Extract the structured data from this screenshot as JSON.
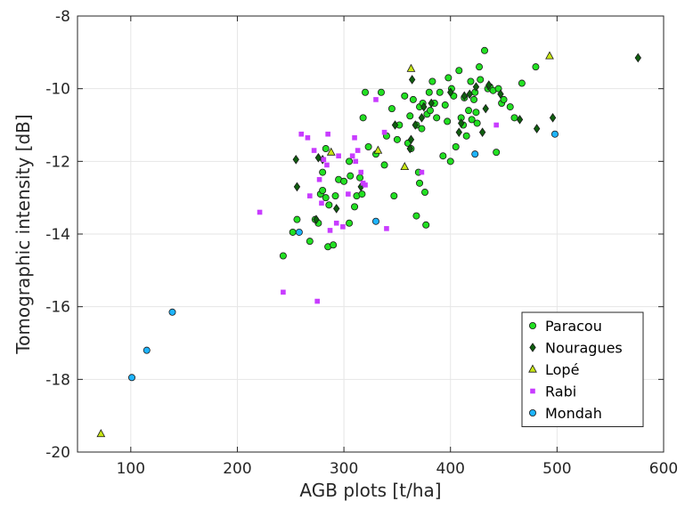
{
  "chart_data": {
    "type": "scatter",
    "title": "",
    "xlabel": "AGB plots [t/ha]",
    "ylabel": "Tomographic intensity [dB]",
    "xlim": [
      50,
      600
    ],
    "ylim": [
      -20,
      -8
    ],
    "xticks": [
      "100",
      "200",
      "300",
      "400",
      "500",
      "600"
    ],
    "yticks": [
      "-20",
      "-18",
      "-16",
      "-14",
      "-12",
      "-10",
      "-8"
    ],
    "grid": true,
    "legend_position": "bottom-right",
    "series": [
      {
        "name": "Paracou",
        "marker": "circle",
        "color": "#22e022",
        "points": [
          [
            243,
            -14.6
          ],
          [
            252,
            -13.95
          ],
          [
            256,
            -13.6
          ],
          [
            268,
            -14.2
          ],
          [
            273,
            -13.6
          ],
          [
            276,
            -13.7
          ],
          [
            278,
            -12.9
          ],
          [
            280,
            -12.8
          ],
          [
            280,
            -12.3
          ],
          [
            283,
            -11.65
          ],
          [
            285,
            -14.35
          ],
          [
            290,
            -14.3
          ],
          [
            283,
            -13.0
          ],
          [
            286,
            -13.2
          ],
          [
            292,
            -12.95
          ],
          [
            295,
            -12.5
          ],
          [
            300,
            -12.55
          ],
          [
            305,
            -13.7
          ],
          [
            305,
            -12.0
          ],
          [
            306,
            -12.4
          ],
          [
            310,
            -13.25
          ],
          [
            312,
            -12.95
          ],
          [
            315,
            -12.45
          ],
          [
            317,
            -12.9
          ],
          [
            318,
            -10.8
          ],
          [
            320,
            -10.1
          ],
          [
            323,
            -11.6
          ],
          [
            330,
            -11.8
          ],
          [
            335,
            -10.1
          ],
          [
            338,
            -12.1
          ],
          [
            340,
            -11.3
          ],
          [
            345,
            -10.55
          ],
          [
            347,
            -12.95
          ],
          [
            350,
            -11.4
          ],
          [
            352,
            -11.0
          ],
          [
            357,
            -10.2
          ],
          [
            360,
            -11.5
          ],
          [
            362,
            -10.75
          ],
          [
            363,
            -11.65
          ],
          [
            365,
            -10.3
          ],
          [
            368,
            -11.0
          ],
          [
            368,
            -13.5
          ],
          [
            370,
            -12.3
          ],
          [
            371,
            -12.6
          ],
          [
            371,
            -10.5
          ],
          [
            373,
            -11.1
          ],
          [
            374,
            -10.4
          ],
          [
            376,
            -12.85
          ],
          [
            377,
            -13.75
          ],
          [
            378,
            -10.7
          ],
          [
            380,
            -10.1
          ],
          [
            381,
            -10.6
          ],
          [
            383,
            -9.8
          ],
          [
            385,
            -10.4
          ],
          [
            387,
            -10.8
          ],
          [
            390,
            -10.1
          ],
          [
            393,
            -11.85
          ],
          [
            395,
            -10.45
          ],
          [
            397,
            -10.9
          ],
          [
            398,
            -9.7
          ],
          [
            400,
            -12.0
          ],
          [
            401,
            -10.0
          ],
          [
            403,
            -10.2
          ],
          [
            405,
            -11.6
          ],
          [
            408,
            -9.5
          ],
          [
            410,
            -10.8
          ],
          [
            412,
            -11.0
          ],
          [
            413,
            -10.25
          ],
          [
            415,
            -11.3
          ],
          [
            417,
            -10.6
          ],
          [
            419,
            -9.8
          ],
          [
            420,
            -10.85
          ],
          [
            422,
            -10.3
          ],
          [
            423,
            -10.1
          ],
          [
            424,
            -10.65
          ],
          [
            425,
            -10.95
          ],
          [
            427,
            -9.4
          ],
          [
            428,
            -9.75
          ],
          [
            432,
            -8.95
          ],
          [
            435,
            -10.0
          ],
          [
            437,
            -9.95
          ],
          [
            440,
            -10.05
          ],
          [
            443,
            -11.75
          ],
          [
            445,
            -10.0
          ],
          [
            448,
            -10.4
          ],
          [
            450,
            -10.3
          ],
          [
            456,
            -10.5
          ],
          [
            460,
            -10.8
          ],
          [
            467,
            -9.85
          ],
          [
            480,
            -9.4
          ]
        ]
      },
      {
        "name": "Nouragues",
        "marker": "diamond",
        "color": "#0f5f0f",
        "points": [
          [
            255,
            -11.95
          ],
          [
            256,
            -12.7
          ],
          [
            274,
            -13.6
          ],
          [
            276,
            -11.9
          ],
          [
            280,
            -11.95
          ],
          [
            293,
            -13.3
          ],
          [
            316,
            -12.7
          ],
          [
            348,
            -11.0
          ],
          [
            362,
            -11.65
          ],
          [
            363,
            -11.4
          ],
          [
            364,
            -9.75
          ],
          [
            367,
            -11.0
          ],
          [
            373,
            -10.8
          ],
          [
            375,
            -10.5
          ],
          [
            382,
            -10.4
          ],
          [
            400,
            -10.1
          ],
          [
            408,
            -11.2
          ],
          [
            410,
            -10.95
          ],
          [
            413,
            -10.2
          ],
          [
            418,
            -10.15
          ],
          [
            424,
            -9.95
          ],
          [
            430,
            -11.2
          ],
          [
            433,
            -10.55
          ],
          [
            436,
            -9.9
          ],
          [
            447,
            -10.15
          ],
          [
            465,
            -10.85
          ],
          [
            481,
            -11.1
          ],
          [
            496,
            -10.8
          ],
          [
            576,
            -9.15
          ]
        ]
      },
      {
        "name": "Lopé",
        "marker": "triangle",
        "color": "#c8e614",
        "points": [
          [
            72,
            -19.5
          ],
          [
            288,
            -11.75
          ],
          [
            332,
            -11.7
          ],
          [
            357,
            -12.15
          ],
          [
            363,
            -9.45
          ],
          [
            493,
            -9.1
          ]
        ]
      },
      {
        "name": "Rabi",
        "marker": "square",
        "color": "#c83cff",
        "points": [
          [
            221,
            -13.4
          ],
          [
            243,
            -15.6
          ],
          [
            260,
            -11.25
          ],
          [
            266,
            -11.35
          ],
          [
            268,
            -12.95
          ],
          [
            272,
            -11.7
          ],
          [
            275,
            -15.85
          ],
          [
            277,
            -12.5
          ],
          [
            279,
            -13.15
          ],
          [
            281,
            -11.95
          ],
          [
            284,
            -12.1
          ],
          [
            285,
            -11.25
          ],
          [
            287,
            -13.9
          ],
          [
            293,
            -13.7
          ],
          [
            295,
            -11.85
          ],
          [
            299,
            -13.8
          ],
          [
            304,
            -12.9
          ],
          [
            308,
            -11.85
          ],
          [
            310,
            -11.35
          ],
          [
            311,
            -12.0
          ],
          [
            313,
            -11.7
          ],
          [
            316,
            -12.3
          ],
          [
            318,
            -12.6
          ],
          [
            320,
            -12.65
          ],
          [
            330,
            -10.3
          ],
          [
            338,
            -11.2
          ],
          [
            340,
            -13.85
          ],
          [
            373,
            -12.3
          ],
          [
            443,
            -11.0
          ]
        ]
      },
      {
        "name": "Mondah",
        "marker": "circle",
        "color": "#1eb4ff",
        "points": [
          [
            101,
            -17.95
          ],
          [
            115,
            -17.2
          ],
          [
            139,
            -16.15
          ],
          [
            258,
            -13.95
          ],
          [
            330,
            -13.65
          ],
          [
            423,
            -11.8
          ],
          [
            498,
            -11.25
          ]
        ]
      }
    ]
  }
}
